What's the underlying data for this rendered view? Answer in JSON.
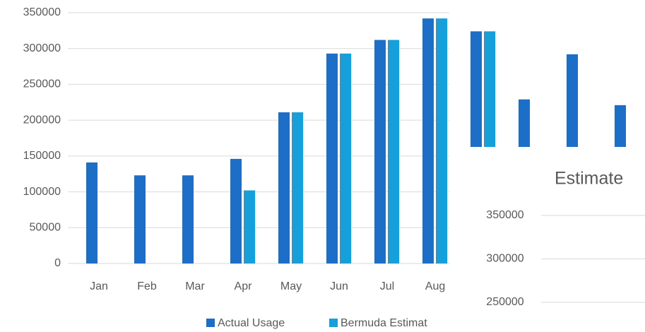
{
  "chart_data": [
    {
      "type": "bar",
      "categories": [
        "Jan",
        "Feb",
        "Mar",
        "Apr",
        "May",
        "Jun",
        "Jul",
        "Aug",
        null,
        null,
        null,
        null
      ],
      "series": [
        {
          "name": "Actual Usage",
          "color": "#1c6ec6",
          "values": [
            141000,
            123000,
            123000,
            146000,
            211000,
            293000,
            312000,
            342000,
            324000,
            229000,
            292000,
            221000
          ]
        },
        {
          "name": "Bermuda Estimat",
          "color": "#16a0db",
          "values": [
            null,
            null,
            null,
            102000,
            211000,
            293000,
            312000,
            342000,
            324000,
            null,
            null,
            null
          ]
        }
      ],
      "ylim": [
        0,
        350000
      ],
      "yticks": [
        0,
        50000,
        100000,
        150000,
        200000,
        250000,
        300000,
        350000
      ],
      "grid": true
    },
    {
      "type": "bar",
      "title": "Estimate",
      "ylim": [
        250000,
        350000
      ],
      "yticks": [
        250000,
        300000,
        350000
      ],
      "grid": true
    }
  ]
}
